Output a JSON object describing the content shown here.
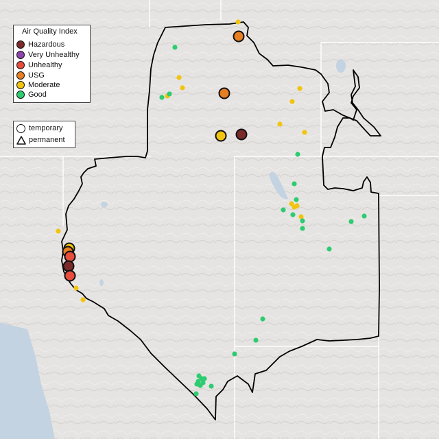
{
  "legend": {
    "title": "Air Quality Index",
    "items": [
      {
        "label": "Hazardous",
        "color": "#7b2a2a"
      },
      {
        "label": "Very Unhealthy",
        "color": "#8e44ad"
      },
      {
        "label": "Unhealthy",
        "color": "#e74c3c"
      },
      {
        "label": "USG",
        "color": "#e67e22"
      },
      {
        "label": "Moderate",
        "color": "#f1c40f"
      },
      {
        "label": "Good",
        "color": "#2ecc71"
      }
    ]
  },
  "monitor_types": [
    {
      "label": "temporary",
      "symbol": "circle"
    },
    {
      "label": "permanent",
      "symbol": "triangle"
    }
  ]
}
